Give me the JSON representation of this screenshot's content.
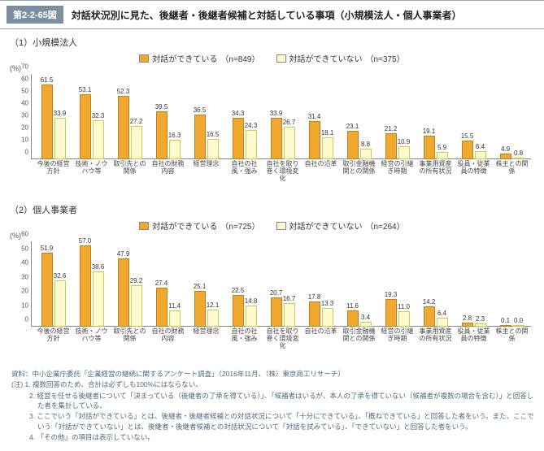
{
  "header": {
    "fig_num": "第2-2-65図",
    "title": "対話状況別に見た、後継者・後継者候補と対話している事項（小規模法人・個人事業者）"
  },
  "legend": {
    "a": "対話ができている",
    "b": "対話ができていない"
  },
  "colors": {
    "bar_a": "#f0a830",
    "bar_b": "#fffad0",
    "bar_a_border": "#c0801a",
    "bar_b_border": "#d6c84a"
  },
  "chart1": {
    "title": "（1）小規模法人",
    "n_a": "（n=849）",
    "n_b": "（n=375）",
    "ylabel": "(%)",
    "ymax": 70,
    "yticks": [
      0,
      10,
      20,
      30,
      40,
      50,
      60,
      70
    ],
    "categories": [
      "今後の経営方針",
      "技術・ノウハウ等",
      "取引先との関係",
      "自社の財務内容",
      "経営理念",
      "自社の社風・強み",
      "自社を取り巻く環境変化",
      "自社の沿革",
      "取引金融機関との関係",
      "経営の引継ぎ時期",
      "事業用資産の所有状況",
      "役員・従業員の特徴",
      "株主との関係"
    ],
    "values_a": [
      61.5,
      53.1,
      52.3,
      39.5,
      36.5,
      34.3,
      33.9,
      31.4,
      23.1,
      21.2,
      19.1,
      15.5,
      4.9
    ],
    "values_b": [
      33.9,
      32.3,
      27.2,
      16.3,
      16.5,
      24.3,
      26.7,
      18.1,
      8.8,
      10.9,
      5.9,
      6.4,
      0.8
    ]
  },
  "chart2": {
    "title": "（2）個人事業者",
    "n_a": "（n=725）",
    "n_b": "（n=264）",
    "ylabel": "(%)",
    "ymax": 60,
    "yticks": [
      0,
      10,
      20,
      30,
      40,
      50,
      60
    ],
    "categories": [
      "今後の経営方針",
      "技術・ノウハウ等",
      "取引先との関係",
      "自社の財務内容",
      "経営理念",
      "自社の社風・強み",
      "自社を取り巻く環境変化",
      "自社の沿革",
      "取引金融機関との関係",
      "経営の引継ぎ時期",
      "事業用資産の所有状況",
      "役員・従業員の特徴",
      "株主との関係"
    ],
    "values_a": [
      51.9,
      57.0,
      47.9,
      27.4,
      25.1,
      22.5,
      20.7,
      17.8,
      11.6,
      19.3,
      14.2,
      2.8,
      0.1
    ],
    "values_b": [
      32.6,
      38.6,
      29.2,
      11.4,
      12.1,
      14.8,
      16.7,
      13.3,
      3.4,
      11.0,
      6.4,
      2.3,
      0.0
    ]
  },
  "notes": {
    "source": "資料：中小企業庁委託「企業経営の継続に関するアンケート調査」（2016年11月、（株）東京商工リサーチ）",
    "n1": "(注) 1. 複数回答のため、合計は必ずしも100%にはならない。",
    "n2": "2. 経営を任せる後継者について「決まっている（後継者の了承を得ている）」、「候補者はいるが、本人の了承を得ていない（候補者が複数の場合を含む）」と回答した者を集計している。",
    "n3": "3. ここでいう「対話ができている」とは、後継者・後継者候補との対話状況について「十分にできている」、「概ねできている」と回答した者をいう。また、ここでいう「対話ができていない」とは、後継者・後継者候補との対話状況について「対話を試みている」、「できていない」と回答した者をいう。",
    "n4": "4. 「その他」の項目は表示していない。"
  }
}
